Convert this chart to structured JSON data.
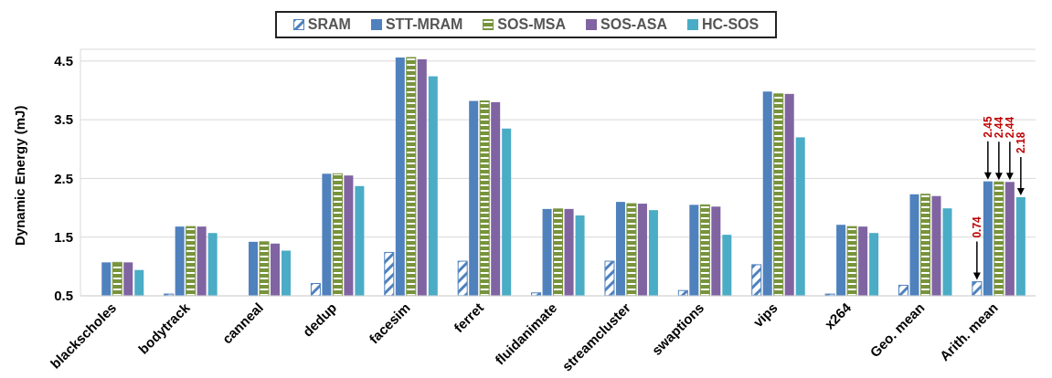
{
  "chart_data": {
    "type": "bar",
    "ylabel": "Dynamic Energy (mJ)",
    "categories": [
      "blackscholes",
      "bodytrack",
      "canneal",
      "dedup",
      "facesim",
      "ferret",
      "fluidanimate",
      "streamcluster",
      "swaptions",
      "vips",
      "x264",
      "Geo. mean",
      "Arith. mean"
    ],
    "series": [
      {
        "name": "SRAM",
        "color": "#4f81bd",
        "values": [
          null,
          0.53,
          null,
          0.71,
          1.24,
          1.09,
          0.55,
          1.09,
          0.59,
          1.03,
          0.53,
          0.68,
          0.74
        ],
        "value_labels": [
          null,
          null,
          null,
          null,
          null,
          null,
          null,
          null,
          null,
          null,
          null,
          null,
          "0.74"
        ]
      },
      {
        "name": "STT-MRAM",
        "color": "#4f81bd",
        "values": [
          1.07,
          1.68,
          1.42,
          2.58,
          4.56,
          3.82,
          1.98,
          2.1,
          2.05,
          3.98,
          1.71,
          2.23,
          2.45
        ],
        "value_labels": [
          null,
          null,
          null,
          null,
          null,
          null,
          null,
          null,
          null,
          null,
          null,
          null,
          "2.45"
        ]
      },
      {
        "name": "SOS-MSA",
        "color": "#77933c",
        "values": [
          1.07,
          1.68,
          1.42,
          2.58,
          4.56,
          3.82,
          1.98,
          2.07,
          2.05,
          3.94,
          1.68,
          2.23,
          2.44
        ],
        "value_labels": [
          null,
          null,
          null,
          null,
          null,
          null,
          null,
          null,
          null,
          null,
          null,
          null,
          "2.44"
        ]
      },
      {
        "name": "SOS-ASA",
        "color": "#8064a2",
        "values": [
          1.07,
          1.68,
          1.39,
          2.55,
          4.53,
          3.8,
          1.98,
          2.07,
          2.02,
          3.94,
          1.68,
          2.2,
          2.44
        ],
        "value_labels": [
          null,
          null,
          null,
          null,
          null,
          null,
          null,
          null,
          null,
          null,
          null,
          null,
          "2.44"
        ]
      },
      {
        "name": "HC-SOS",
        "color": "#4bacc6",
        "values": [
          0.94,
          1.57,
          1.27,
          2.37,
          4.24,
          3.35,
          1.87,
          1.96,
          1.54,
          3.2,
          1.57,
          1.99,
          2.18
        ],
        "value_labels": [
          null,
          null,
          null,
          null,
          null,
          null,
          null,
          null,
          null,
          null,
          null,
          null,
          "2.18"
        ]
      }
    ],
    "ylim": [
      0.5,
      4.7
    ],
    "yticks": [
      0.5,
      1.5,
      2.5,
      3.5,
      4.5
    ],
    "grid": "y",
    "legend": "top"
  }
}
